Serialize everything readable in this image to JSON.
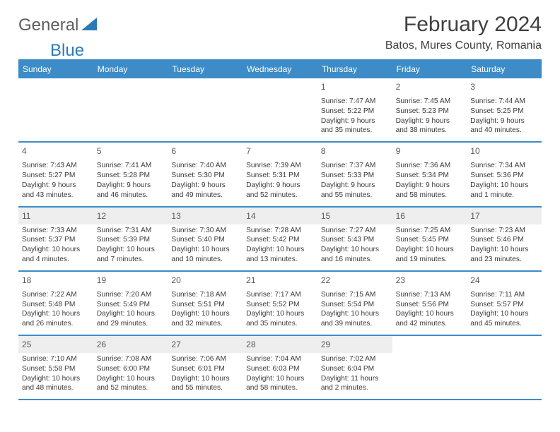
{
  "logo": {
    "text1": "General",
    "text2": "Blue"
  },
  "title": "February 2024",
  "location": "Batos, Mures County, Romania",
  "colors": {
    "header_bg": "#3d8cc8",
    "header_text": "#ffffff",
    "border": "#3d8cc8",
    "shaded_bg": "#eeeeee",
    "logo_gray": "#5e5e5e",
    "logo_blue": "#2a7ab8",
    "body_text": "#3a3a3a",
    "title_text": "#404040"
  },
  "day_names": [
    "Sunday",
    "Monday",
    "Tuesday",
    "Wednesday",
    "Thursday",
    "Friday",
    "Saturday"
  ],
  "weeks": [
    [
      null,
      null,
      null,
      null,
      {
        "n": "1",
        "sr": "Sunrise: 7:47 AM",
        "ss": "Sunset: 5:22 PM",
        "dl": "Daylight: 9 hours and 35 minutes."
      },
      {
        "n": "2",
        "sr": "Sunrise: 7:45 AM",
        "ss": "Sunset: 5:23 PM",
        "dl": "Daylight: 9 hours and 38 minutes."
      },
      {
        "n": "3",
        "sr": "Sunrise: 7:44 AM",
        "ss": "Sunset: 5:25 PM",
        "dl": "Daylight: 9 hours and 40 minutes."
      }
    ],
    [
      {
        "n": "4",
        "sr": "Sunrise: 7:43 AM",
        "ss": "Sunset: 5:27 PM",
        "dl": "Daylight: 9 hours and 43 minutes."
      },
      {
        "n": "5",
        "sr": "Sunrise: 7:41 AM",
        "ss": "Sunset: 5:28 PM",
        "dl": "Daylight: 9 hours and 46 minutes."
      },
      {
        "n": "6",
        "sr": "Sunrise: 7:40 AM",
        "ss": "Sunset: 5:30 PM",
        "dl": "Daylight: 9 hours and 49 minutes."
      },
      {
        "n": "7",
        "sr": "Sunrise: 7:39 AM",
        "ss": "Sunset: 5:31 PM",
        "dl": "Daylight: 9 hours and 52 minutes."
      },
      {
        "n": "8",
        "sr": "Sunrise: 7:37 AM",
        "ss": "Sunset: 5:33 PM",
        "dl": "Daylight: 9 hours and 55 minutes."
      },
      {
        "n": "9",
        "sr": "Sunrise: 7:36 AM",
        "ss": "Sunset: 5:34 PM",
        "dl": "Daylight: 9 hours and 58 minutes."
      },
      {
        "n": "10",
        "sr": "Sunrise: 7:34 AM",
        "ss": "Sunset: 5:36 PM",
        "dl": "Daylight: 10 hours and 1 minute."
      }
    ],
    [
      {
        "n": "11",
        "sr": "Sunrise: 7:33 AM",
        "ss": "Sunset: 5:37 PM",
        "dl": "Daylight: 10 hours and 4 minutes."
      },
      {
        "n": "12",
        "sr": "Sunrise: 7:31 AM",
        "ss": "Sunset: 5:39 PM",
        "dl": "Daylight: 10 hours and 7 minutes."
      },
      {
        "n": "13",
        "sr": "Sunrise: 7:30 AM",
        "ss": "Sunset: 5:40 PM",
        "dl": "Daylight: 10 hours and 10 minutes."
      },
      {
        "n": "14",
        "sr": "Sunrise: 7:28 AM",
        "ss": "Sunset: 5:42 PM",
        "dl": "Daylight: 10 hours and 13 minutes."
      },
      {
        "n": "15",
        "sr": "Sunrise: 7:27 AM",
        "ss": "Sunset: 5:43 PM",
        "dl": "Daylight: 10 hours and 16 minutes."
      },
      {
        "n": "16",
        "sr": "Sunrise: 7:25 AM",
        "ss": "Sunset: 5:45 PM",
        "dl": "Daylight: 10 hours and 19 minutes."
      },
      {
        "n": "17",
        "sr": "Sunrise: 7:23 AM",
        "ss": "Sunset: 5:46 PM",
        "dl": "Daylight: 10 hours and 23 minutes."
      }
    ],
    [
      {
        "n": "18",
        "sr": "Sunrise: 7:22 AM",
        "ss": "Sunset: 5:48 PM",
        "dl": "Daylight: 10 hours and 26 minutes."
      },
      {
        "n": "19",
        "sr": "Sunrise: 7:20 AM",
        "ss": "Sunset: 5:49 PM",
        "dl": "Daylight: 10 hours and 29 minutes."
      },
      {
        "n": "20",
        "sr": "Sunrise: 7:18 AM",
        "ss": "Sunset: 5:51 PM",
        "dl": "Daylight: 10 hours and 32 minutes."
      },
      {
        "n": "21",
        "sr": "Sunrise: 7:17 AM",
        "ss": "Sunset: 5:52 PM",
        "dl": "Daylight: 10 hours and 35 minutes."
      },
      {
        "n": "22",
        "sr": "Sunrise: 7:15 AM",
        "ss": "Sunset: 5:54 PM",
        "dl": "Daylight: 10 hours and 39 minutes."
      },
      {
        "n": "23",
        "sr": "Sunrise: 7:13 AM",
        "ss": "Sunset: 5:56 PM",
        "dl": "Daylight: 10 hours and 42 minutes."
      },
      {
        "n": "24",
        "sr": "Sunrise: 7:11 AM",
        "ss": "Sunset: 5:57 PM",
        "dl": "Daylight: 10 hours and 45 minutes."
      }
    ],
    [
      {
        "n": "25",
        "sr": "Sunrise: 7:10 AM",
        "ss": "Sunset: 5:58 PM",
        "dl": "Daylight: 10 hours and 48 minutes."
      },
      {
        "n": "26",
        "sr": "Sunrise: 7:08 AM",
        "ss": "Sunset: 6:00 PM",
        "dl": "Daylight: 10 hours and 52 minutes."
      },
      {
        "n": "27",
        "sr": "Sunrise: 7:06 AM",
        "ss": "Sunset: 6:01 PM",
        "dl": "Daylight: 10 hours and 55 minutes."
      },
      {
        "n": "28",
        "sr": "Sunrise: 7:04 AM",
        "ss": "Sunset: 6:03 PM",
        "dl": "Daylight: 10 hours and 58 minutes."
      },
      {
        "n": "29",
        "sr": "Sunrise: 7:02 AM",
        "ss": "Sunset: 6:04 PM",
        "dl": "Daylight: 11 hours and 2 minutes."
      },
      null,
      null
    ]
  ],
  "shaded_weeks": [
    2,
    4
  ]
}
